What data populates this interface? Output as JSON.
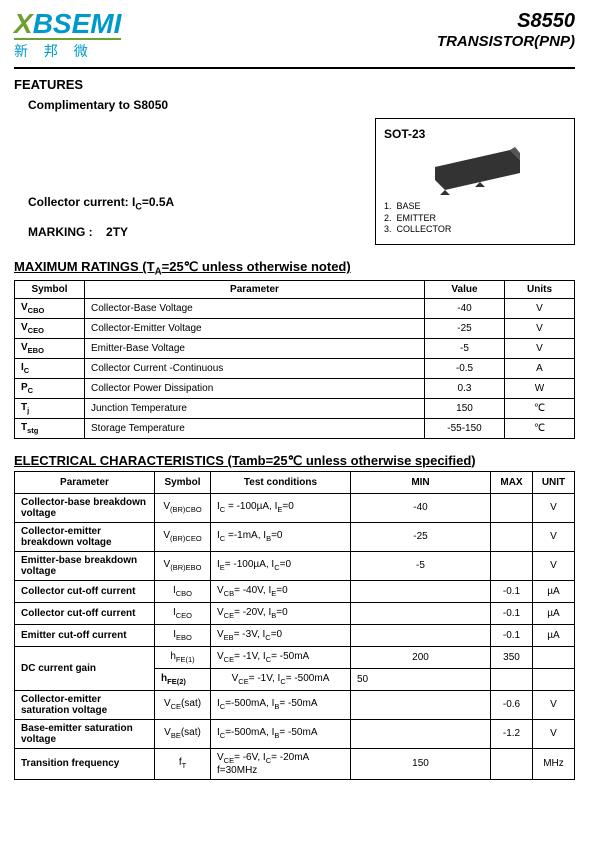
{
  "header": {
    "logo_main_pre": "X",
    "logo_main_post": "BSEMI",
    "logo_sub": "新 邦 微",
    "part_number": "S8550",
    "part_type": "TRANSISTOR(PNP)"
  },
  "features": {
    "heading": "FEATURES",
    "line1": "Complimentary to S8050",
    "line2_pre": "Collector current: I",
    "line2_sub": "C",
    "line2_post": "=0.5A"
  },
  "marking": {
    "label": "MARKING :",
    "value": "2TY"
  },
  "package": {
    "name": "SOT-23",
    "pins": [
      {
        "num": "1.",
        "label": "BASE"
      },
      {
        "num": "2.",
        "label": "EMITTER"
      },
      {
        "num": "3.",
        "label": "COLLECTOR"
      }
    ]
  },
  "max_ratings": {
    "heading": "MAXIMUM RATINGS (T",
    "heading_sub": "A",
    "heading_post": "=25℃ unless otherwise noted)",
    "cols": [
      "Symbol",
      "Parameter",
      "Value",
      "Units"
    ],
    "rows": [
      {
        "sym_pre": "V",
        "sym_sub": "CBO",
        "param": "Collector-Base Voltage",
        "value": "-40",
        "unit": "V"
      },
      {
        "sym_pre": "V",
        "sym_sub": "CEO",
        "param": "Collector-Emitter Voltage",
        "value": "-25",
        "unit": "V"
      },
      {
        "sym_pre": "V",
        "sym_sub": "EBO",
        "param": "Emitter-Base Voltage",
        "value": "-5",
        "unit": "V"
      },
      {
        "sym_pre": "I",
        "sym_sub": "C",
        "param": "Collector Current -Continuous",
        "value": "-0.5",
        "unit": "A"
      },
      {
        "sym_pre": "P",
        "sym_sub": "C",
        "param": "Collector Power Dissipation",
        "value": "0.3",
        "unit": "W"
      },
      {
        "sym_pre": "T",
        "sym_sub": "j",
        "param": "Junction Temperature",
        "value": "150",
        "unit": "℃"
      },
      {
        "sym_pre": "T",
        "sym_sub": "stg",
        "param": "Storage Temperature",
        "value": "-55-150",
        "unit": "℃"
      }
    ]
  },
  "elec": {
    "heading": "ELECTRICAL CHARACTERISTICS (Tamb=25℃ unless otherwise specified)",
    "cols": [
      "Parameter",
      "Symbol",
      "Test    conditions",
      "MIN",
      "MAX",
      "UNIT"
    ],
    "rows": [
      {
        "param": "Collector-base breakdown voltage",
        "sym_pre": "V",
        "sym_sub": "(BR)CBO",
        "cond": "I<sub>C</sub> = -100µA,    I<sub>E</sub>=0",
        "min": "-40",
        "max": "",
        "unit": "V"
      },
      {
        "param": "Collector-emitter breakdown voltage",
        "sym_pre": "V",
        "sym_sub": "(BR)CEO",
        "cond": "I<sub>C</sub> =-1mA,   I<sub>B</sub>=0",
        "min": "-25",
        "max": "",
        "unit": "V"
      },
      {
        "param": "Emitter-base breakdown voltage",
        "sym_pre": "V",
        "sym_sub": "(BR)EBO",
        "cond": "I<sub>E</sub>= -100µA,   I<sub>C</sub>=0",
        "min": "-5",
        "max": "",
        "unit": "V"
      },
      {
        "param": "Collector cut-off current",
        "sym_pre": "I",
        "sym_sub": "CBO",
        "cond": "V<sub>CB</sub>= -40V,   I<sub>E</sub>=0",
        "min": "",
        "max": "-0.1",
        "unit": "µA"
      },
      {
        "param": "Collector cut-off current",
        "sym_pre": "I",
        "sym_sub": "CEO",
        "cond": "V<sub>CE</sub>= -20V,   I<sub>B</sub>=0",
        "min": "",
        "max": "-0.1",
        "unit": "µA"
      },
      {
        "param": "Emitter cut-off current",
        "sym_pre": "I",
        "sym_sub": "EBO",
        "cond": "V<sub>EB</sub>= -3V,   I<sub>C</sub>=0",
        "min": "",
        "max": "-0.1",
        "unit": "µA"
      },
      {
        "param": "",
        "rowspan_with_prev": false,
        "sym_pre": "h",
        "sym_sub": "FE(1)",
        "cond": "V<sub>CE</sub>= -1V,   I<sub>C</sub>= -50mA",
        "min": "200",
        "max": "350",
        "unit": ""
      },
      {
        "param": "",
        "sym_pre": "h",
        "sym_sub": "FE(2)",
        "cond": "V<sub>CE</sub>= -1V,   I<sub>C</sub>= -500mA",
        "min": "50",
        "max": "",
        "unit": ""
      },
      {
        "param": "Collector-emitter saturation voltage",
        "sym_pre": "V",
        "sym_sub": "CE",
        "sym_suf": "(sat)",
        "cond": "I<sub>C</sub>=-500mA,   I<sub>B</sub>= -50mA",
        "min": "",
        "max": "-0.6",
        "unit": "V"
      },
      {
        "param": "Base-emitter saturation voltage",
        "sym_pre": "V",
        "sym_sub": "BE",
        "sym_suf": "(sat)",
        "cond": "I<sub>C</sub>=-500mA,   I<sub>B</sub>= -50mA",
        "min": "",
        "max": "-1.2",
        "unit": "V"
      },
      {
        "param": "Transition frequency",
        "sym_pre": "f",
        "sym_sub": "T",
        "cond": "V<sub>CE</sub>= -6V,   I<sub>C</sub>= -20mA<br>f=30MHz",
        "min": "150",
        "max": "",
        "unit": "MHz"
      }
    ],
    "dc_gain_label": "DC current gain"
  }
}
